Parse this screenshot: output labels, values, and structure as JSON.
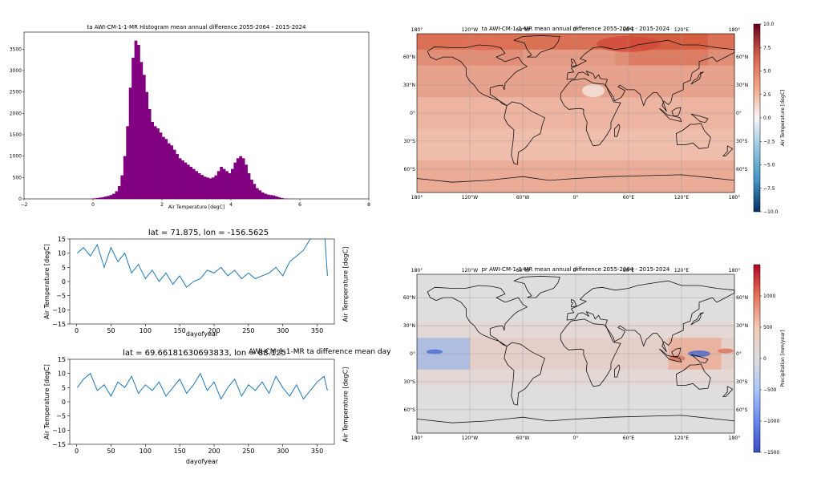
{
  "chart_data": [
    {
      "type": "bar",
      "title": "ta AWI-CM-1-1-MR Histogram mean annual difference 2055-2064 - 2015-2024",
      "xlabel": "Air Temperature [degC]",
      "ylabel": "",
      "xlim": [
        -2,
        8
      ],
      "ylim": [
        0,
        3900
      ],
      "x_ticks": [
        "−2",
        "0",
        "2",
        "4",
        "6",
        "8"
      ],
      "y_ticks": [
        "0",
        "500",
        "1000",
        "1500",
        "2000",
        "2500",
        "3000",
        "3500"
      ],
      "bar_color": "#800080",
      "bin_width": 0.08,
      "bins": [
        [
          -0.08,
          5
        ],
        [
          0.0,
          12
        ],
        [
          0.08,
          20
        ],
        [
          0.16,
          30
        ],
        [
          0.24,
          40
        ],
        [
          0.32,
          55
        ],
        [
          0.4,
          70
        ],
        [
          0.48,
          90
        ],
        [
          0.56,
          120
        ],
        [
          0.64,
          180
        ],
        [
          0.72,
          300
        ],
        [
          0.8,
          550
        ],
        [
          0.88,
          1000
        ],
        [
          0.96,
          1700
        ],
        [
          1.04,
          2600
        ],
        [
          1.12,
          3300
        ],
        [
          1.2,
          3700
        ],
        [
          1.28,
          3600
        ],
        [
          1.36,
          3200
        ],
        [
          1.44,
          2900
        ],
        [
          1.52,
          2500
        ],
        [
          1.6,
          2100
        ],
        [
          1.68,
          1800
        ],
        [
          1.76,
          1700
        ],
        [
          1.84,
          1650
        ],
        [
          1.92,
          1550
        ],
        [
          2.0,
          1450
        ],
        [
          2.08,
          1400
        ],
        [
          2.16,
          1300
        ],
        [
          2.24,
          1250
        ],
        [
          2.32,
          1150
        ],
        [
          2.4,
          1050
        ],
        [
          2.48,
          950
        ],
        [
          2.56,
          900
        ],
        [
          2.64,
          850
        ],
        [
          2.72,
          800
        ],
        [
          2.8,
          750
        ],
        [
          2.88,
          700
        ],
        [
          2.96,
          650
        ],
        [
          3.04,
          600
        ],
        [
          3.12,
          560
        ],
        [
          3.2,
          520
        ],
        [
          3.28,
          500
        ],
        [
          3.36,
          480
        ],
        [
          3.44,
          500
        ],
        [
          3.52,
          550
        ],
        [
          3.6,
          650
        ],
        [
          3.68,
          750
        ],
        [
          3.76,
          700
        ],
        [
          3.84,
          650
        ],
        [
          3.92,
          600
        ],
        [
          4.0,
          700
        ],
        [
          4.08,
          850
        ],
        [
          4.16,
          950
        ],
        [
          4.24,
          1000
        ],
        [
          4.32,
          950
        ],
        [
          4.4,
          800
        ],
        [
          4.48,
          600
        ],
        [
          4.56,
          450
        ],
        [
          4.64,
          350
        ],
        [
          4.72,
          250
        ],
        [
          4.8,
          200
        ],
        [
          4.88,
          150
        ],
        [
          4.96,
          120
        ],
        [
          5.04,
          100
        ],
        [
          5.12,
          90
        ],
        [
          5.2,
          80
        ],
        [
          5.28,
          60
        ],
        [
          5.36,
          40
        ],
        [
          5.44,
          20
        ],
        [
          5.52,
          10
        ],
        [
          5.6,
          8
        ],
        [
          5.68,
          5
        ],
        [
          5.76,
          3
        ]
      ]
    },
    {
      "type": "heatmap",
      "title": "ta AWI-CM-1-1-MR mean annual difference 2055-2064 - 2015-2024",
      "colorbar_label": "Air Temperature [degC]",
      "colorbar_range": [
        -10,
        10
      ],
      "colorbar_ticks": [
        "10.0",
        "7.5",
        "5.0",
        "2.5",
        "0.0",
        "−2.5",
        "−5.0",
        "−7.5",
        "−10.0"
      ],
      "lon_ticks": [
        "180°",
        "120°W",
        "60°W",
        "0°",
        "60°E",
        "120°E",
        "180°"
      ],
      "lat_ticks": [
        "60°N",
        "30°N",
        "0°",
        "30°S",
        "60°S"
      ],
      "colormap": "RdBu_r"
    },
    {
      "type": "line",
      "title": "lat = 71.875, lon = -156.5625",
      "xlabel": "dayofyear",
      "ylabel": "Air Temperature [degC]",
      "xlim": [
        -10,
        375
      ],
      "ylim": [
        -15,
        15
      ],
      "x_ticks": [
        "0",
        "50",
        "100",
        "150",
        "200",
        "250",
        "300",
        "350"
      ],
      "y_ticks": [
        "15",
        "10",
        "5",
        "0",
        "−5",
        "−10",
        "−15"
      ],
      "line_color": "#1f77b4",
      "x": [
        1,
        10,
        20,
        30,
        40,
        50,
        60,
        70,
        80,
        90,
        100,
        110,
        120,
        130,
        140,
        150,
        160,
        170,
        180,
        190,
        200,
        210,
        220,
        230,
        240,
        250,
        260,
        270,
        280,
        290,
        300,
        310,
        320,
        330,
        340,
        350,
        360,
        365
      ],
      "y": [
        10,
        12,
        9,
        13,
        5,
        12,
        7,
        10,
        3,
        6,
        1,
        4,
        0,
        3,
        -1,
        2,
        -2,
        0,
        1,
        4,
        3,
        5,
        2,
        4,
        1,
        3,
        1,
        2,
        3,
        5,
        2,
        7,
        9,
        11,
        15,
        18,
        20,
        2
      ]
    },
    {
      "type": "line",
      "title": "lat = 69.66181630693833, lon = 88.125",
      "xlabel": "dayofyear",
      "ylabel": "Air Temperature [degC]",
      "xlim": [
        -10,
        375
      ],
      "ylim": [
        -15,
        15
      ],
      "x_ticks": [
        "0",
        "50",
        "100",
        "150",
        "200",
        "250",
        "300",
        "350"
      ],
      "y_ticks": [
        "15",
        "10",
        "5",
        "0",
        "−5",
        "−10",
        "−15"
      ],
      "line_color": "#1f77b4",
      "x": [
        1,
        10,
        20,
        30,
        40,
        50,
        60,
        70,
        80,
        90,
        100,
        110,
        120,
        130,
        140,
        150,
        160,
        170,
        180,
        190,
        200,
        210,
        220,
        230,
        240,
        250,
        260,
        270,
        280,
        290,
        300,
        310,
        320,
        330,
        340,
        350,
        360,
        365
      ],
      "y": [
        5,
        8,
        10,
        4,
        6,
        2,
        7,
        5,
        9,
        3,
        6,
        4,
        7,
        2,
        5,
        8,
        3,
        6,
        10,
        4,
        7,
        1,
        5,
        8,
        2,
        6,
        4,
        7,
        3,
        9,
        5,
        2,
        6,
        1,
        4,
        7,
        9,
        4
      ]
    },
    {
      "type": "heatmap",
      "title": "pr AWI-CM-1-1-MR mean annual difference 2055-2064 - 2015-2024",
      "colorbar_label": "Precipitation [mm/year]",
      "colorbar_range": [
        -1500,
        1500
      ],
      "colorbar_ticks": [
        "1000",
        "500",
        "0",
        "−500",
        "−1000",
        "−1500"
      ],
      "lon_ticks": [
        "180°",
        "120°W",
        "60°W",
        "0°",
        "60°E",
        "120°E",
        "180°"
      ],
      "lat_ticks": [
        "60°N",
        "30°N",
        "0°",
        "30°S",
        "60°S"
      ],
      "colormap": "coolwarm"
    }
  ],
  "overlay_title": "AWI-CM-1-1-MR ta difference mean day"
}
